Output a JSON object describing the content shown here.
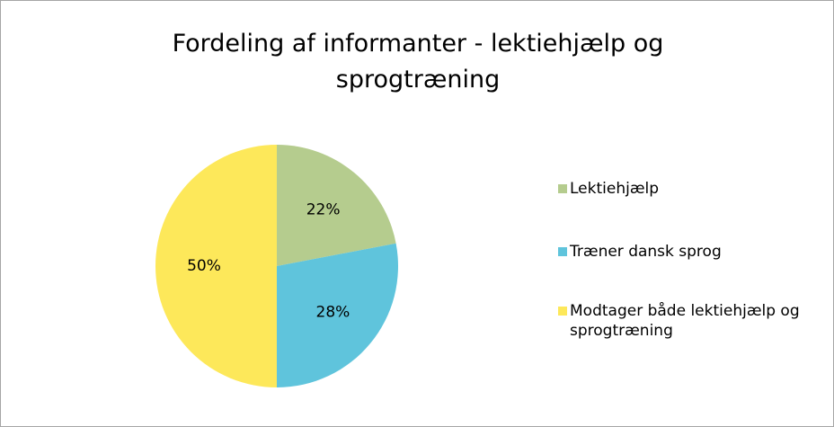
{
  "chart_data": {
    "type": "pie",
    "title": "Fordeling af informanter - lektiehjælp og sprogtræning",
    "categories": [
      "Lektiehjælp",
      "Træner dansk sprog",
      "Modtager både lektiehjælp og sprogtræning"
    ],
    "values": [
      22,
      28,
      50
    ],
    "value_labels": [
      "22%",
      "28%",
      "50%"
    ],
    "colors": [
      "#b5cc8e",
      "#5fc4dc",
      "#fde85a"
    ],
    "legend": "right"
  }
}
